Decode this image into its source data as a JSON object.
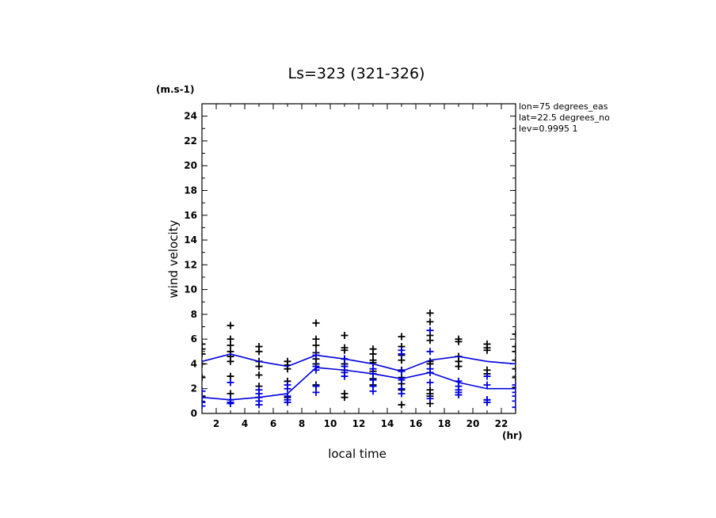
{
  "chart_data": {
    "type": "scatter",
    "title": "Ls=323 (321-326)",
    "xlabel": "local time",
    "ylabel": "wind velocity",
    "x_unit": "(hr)",
    "y_unit": "(m.s-1)",
    "xlim": [
      1,
      23
    ],
    "ylim": [
      0,
      25
    ],
    "x_ticks": [
      2,
      4,
      6,
      8,
      10,
      12,
      14,
      16,
      18,
      20,
      22
    ],
    "y_ticks": [
      0,
      2,
      4,
      6,
      8,
      10,
      12,
      14,
      16,
      18,
      20,
      22,
      24
    ],
    "annotations": [
      "lon=75 degrees_eas",
      "lat=22.5 degrees_no",
      "lev=0.9995 1"
    ],
    "colors": {
      "black_series": "#000000",
      "blue_series": "#0000dd"
    },
    "series": [
      {
        "color": "black",
        "marker": "plus",
        "x": [
          1,
          3,
          5,
          7,
          9,
          11,
          13,
          15,
          17,
          19,
          21,
          23
        ],
        "points": [
          [
            5.6,
            5.2,
            4.8,
            4.0,
            2.9,
            1.4
          ],
          [
            7.1,
            6.0,
            5.5,
            5.0,
            4.6,
            4.2,
            3.0,
            1.6
          ],
          [
            5.4,
            5.0,
            4.2,
            3.8,
            3.1,
            2.2
          ],
          [
            4.2,
            3.9,
            3.6,
            2.6,
            1.3
          ],
          [
            7.3,
            6.0,
            5.5,
            4.9,
            4.4,
            4.0,
            2.3
          ],
          [
            6.3,
            5.3,
            5.1,
            4.4,
            4.0,
            3.5,
            1.6,
            1.3
          ],
          [
            5.2,
            4.8,
            4.3,
            4.1,
            3.4,
            2.8,
            2.3
          ],
          [
            6.2,
            5.4,
            4.7,
            4.3,
            3.5,
            2.9,
            2.4,
            1.9,
            0.7
          ],
          [
            8.1,
            7.4,
            6.3,
            5.9,
            4.2,
            4.0,
            1.9,
            1.6,
            1.4,
            0.8
          ],
          [
            6.0,
            5.8,
            4.6,
            4.2,
            3.8
          ],
          [
            5.6,
            5.3,
            5.1,
            3.5,
            3.2,
            1.1,
            0.9
          ],
          [
            6.4,
            5.4,
            5.0,
            4.3,
            3.6,
            2.9,
            2.1
          ]
        ]
      },
      {
        "color": "blue",
        "marker": "plus",
        "x": [
          1,
          3,
          5,
          7,
          9,
          11,
          13,
          15,
          17,
          19,
          21,
          23
        ],
        "points": [
          [
            1.8,
            1.3,
            0.9,
            0.6
          ],
          [
            2.5,
            1.1,
            0.9,
            0.8
          ],
          [
            1.9,
            1.6,
            1.3,
            1.0,
            0.7
          ],
          [
            2.3,
            2.0,
            1.4,
            1.1,
            0.9
          ],
          [
            4.7,
            3.8,
            3.5,
            2.2,
            1.7
          ],
          [
            4.4,
            3.8,
            3.3,
            3.0
          ],
          [
            3.6,
            3.2,
            2.7,
            2.2,
            1.8
          ],
          [
            5.1,
            4.8,
            3.4,
            2.7,
            2.0,
            1.6
          ],
          [
            6.7,
            5.0,
            3.6,
            3.3,
            2.5,
            1.2
          ],
          [
            2.6,
            2.2,
            1.9,
            1.7,
            1.5
          ],
          [
            3.0,
            2.3,
            1.1,
            0.9
          ],
          [
            2.3,
            1.7,
            1.4,
            1.0,
            0.5
          ]
        ]
      }
    ],
    "lines": [
      {
        "color": "blue",
        "x": [
          1,
          3,
          5,
          7,
          9,
          11,
          13,
          15,
          17,
          19,
          21,
          23
        ],
        "y": [
          4.2,
          4.8,
          4.2,
          3.8,
          4.7,
          4.4,
          4.0,
          3.4,
          4.3,
          4.6,
          4.2,
          4.0
        ]
      },
      {
        "color": "blue",
        "x": [
          1,
          3,
          5,
          7,
          9,
          11,
          13,
          15,
          17,
          19,
          21,
          23
        ],
        "y": [
          1.3,
          1.1,
          1.3,
          1.6,
          3.7,
          3.5,
          3.2,
          2.8,
          3.3,
          2.5,
          2.0,
          2.0
        ]
      }
    ]
  }
}
